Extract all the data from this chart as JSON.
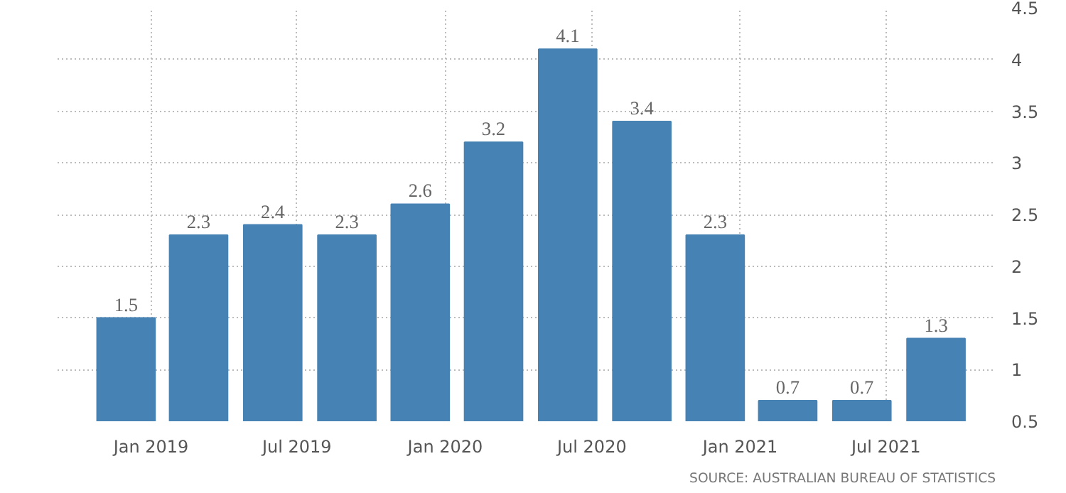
{
  "chart_data": {
    "type": "bar",
    "x": [
      "2018-12",
      "2019-03",
      "2019-06",
      "2019-09",
      "2019-12",
      "2020-03",
      "2020-06",
      "2020-09",
      "2020-12",
      "2021-03",
      "2021-06",
      "2021-09"
    ],
    "values": [
      1.5,
      2.3,
      2.4,
      2.3,
      2.6,
      3.2,
      4.1,
      3.4,
      2.3,
      0.7,
      0.7,
      1.3
    ],
    "color": "#4682b4",
    "data_labels": true,
    "xlim": [
      "2018-09-07",
      "2021-11-14"
    ],
    "xticks": [
      {
        "value": "2019-01",
        "label": "Jan 2019"
      },
      {
        "value": "2019-07",
        "label": "Jul 2019"
      },
      {
        "value": "2020-01",
        "label": "Jan 2020"
      },
      {
        "value": "2020-07",
        "label": "Jul 2020"
      },
      {
        "value": "2021-01",
        "label": "Jan 2021"
      },
      {
        "value": "2021-07",
        "label": "Jul 2021"
      }
    ],
    "ylim": [
      0.5,
      4.5
    ],
    "yticks": [
      0.5,
      1,
      1.5,
      2,
      2.5,
      3,
      3.5,
      4,
      4.5
    ],
    "grid": true,
    "annotations": [
      "SOURCE: AUSTRALIAN BUREAU OF STATISTICS"
    ]
  }
}
